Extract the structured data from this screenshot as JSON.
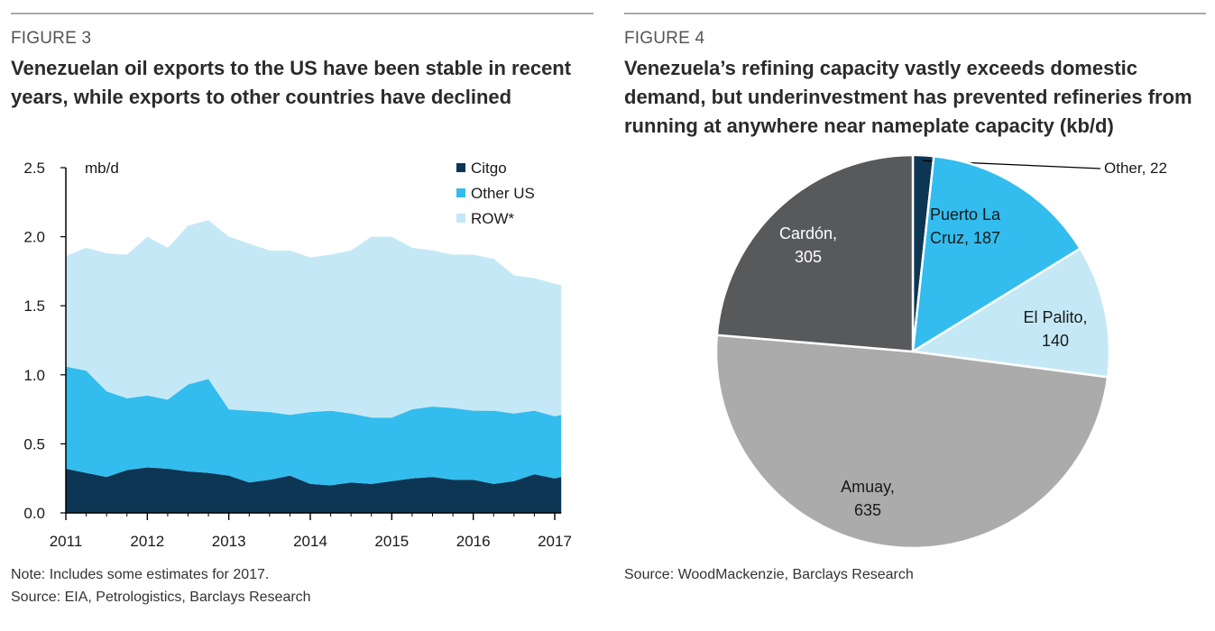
{
  "left": {
    "figure_label": "FIGURE 3",
    "title_lines": [
      "Venezuelan oil exports to the US have been stable in recent",
      "years, while exports to other countries have declined"
    ],
    "notes": [
      "Note: Includes some estimates for 2017.",
      "Source: EIA, Petrologistics, Barclays Research"
    ]
  },
  "right": {
    "figure_label": "FIGURE 4",
    "title_lines": [
      "Venezuela’s refining capacity vastly exceeds domestic",
      "demand, but underinvestment has prevented refineries from",
      "running at anywhere near nameplate capacity (kb/d)"
    ],
    "notes": [
      "Source: WoodMackenzie, Barclays Research"
    ]
  },
  "chart_data": [
    {
      "type": "area",
      "stacked": true,
      "title": "Venezuelan oil exports to the US have been stable in recent years, while exports to other countries have declined",
      "ylabel": "mb/d",
      "ylim": [
        0,
        2.5
      ],
      "xlim": [
        2011,
        2017
      ],
      "yticks": [
        "2.5",
        "2.0",
        "1.5",
        "1.0",
        "0.5",
        "0.0"
      ],
      "xticks": [
        "2011",
        "2012",
        "2013",
        "2014",
        "2015",
        "2016",
        "2017"
      ],
      "legend_position": "top-right",
      "x": [
        2011.0,
        2011.25,
        2011.5,
        2011.75,
        2012.0,
        2012.25,
        2012.5,
        2012.75,
        2013.0,
        2013.25,
        2013.5,
        2013.75,
        2014.0,
        2014.25,
        2014.5,
        2014.75,
        2015.0,
        2015.25,
        2015.5,
        2015.75,
        2016.0,
        2016.25,
        2016.5,
        2016.75,
        2017.0,
        2017.08
      ],
      "series": [
        {
          "name": "Citgo",
          "color": "#0d3655",
          "values": [
            0.32,
            0.29,
            0.26,
            0.31,
            0.33,
            0.32,
            0.3,
            0.29,
            0.27,
            0.22,
            0.24,
            0.27,
            0.21,
            0.2,
            0.22,
            0.21,
            0.23,
            0.25,
            0.26,
            0.24,
            0.24,
            0.21,
            0.23,
            0.28,
            0.25,
            0.26
          ]
        },
        {
          "name": "Other US",
          "color": "#33bcee",
          "values": [
            0.74,
            0.74,
            0.62,
            0.52,
            0.52,
            0.5,
            0.63,
            0.68,
            0.48,
            0.52,
            0.49,
            0.44,
            0.52,
            0.54,
            0.5,
            0.48,
            0.46,
            0.5,
            0.51,
            0.52,
            0.5,
            0.53,
            0.49,
            0.46,
            0.45,
            0.45
          ]
        },
        {
          "name": "ROW*",
          "color": "#c4e8f6",
          "values": [
            0.8,
            0.89,
            1.0,
            1.04,
            1.15,
            1.1,
            1.15,
            1.15,
            1.25,
            1.21,
            1.17,
            1.19,
            1.12,
            1.13,
            1.18,
            1.31,
            1.31,
            1.17,
            1.13,
            1.11,
            1.13,
            1.1,
            1.0,
            0.96,
            0.96,
            0.94
          ]
        }
      ]
    },
    {
      "type": "pie",
      "title": "Venezuela’s refining capacity vastly exceeds domestic demand, but underinvestment has prevented refineries from running at anywhere near nameplate capacity (kb/d)",
      "unit": "kb/d",
      "slices": [
        {
          "label": "Other",
          "value": 22,
          "color": "#0d3655",
          "text": [
            "Other, 22"
          ]
        },
        {
          "label": "Puerto La Cruz",
          "value": 187,
          "color": "#33bcee",
          "text": [
            "Puerto La",
            "Cruz, 187"
          ]
        },
        {
          "label": "El Palito",
          "value": 140,
          "color": "#c4e8f6",
          "text": [
            "El Palito,",
            "140"
          ]
        },
        {
          "label": "Amuay",
          "value": 635,
          "color": "#ababab",
          "text": [
            "Amuay,",
            "635"
          ]
        },
        {
          "label": "Cardón",
          "value": 305,
          "color": "#58595b",
          "text": [
            "Cardón,",
            "305"
          ]
        }
      ]
    }
  ]
}
